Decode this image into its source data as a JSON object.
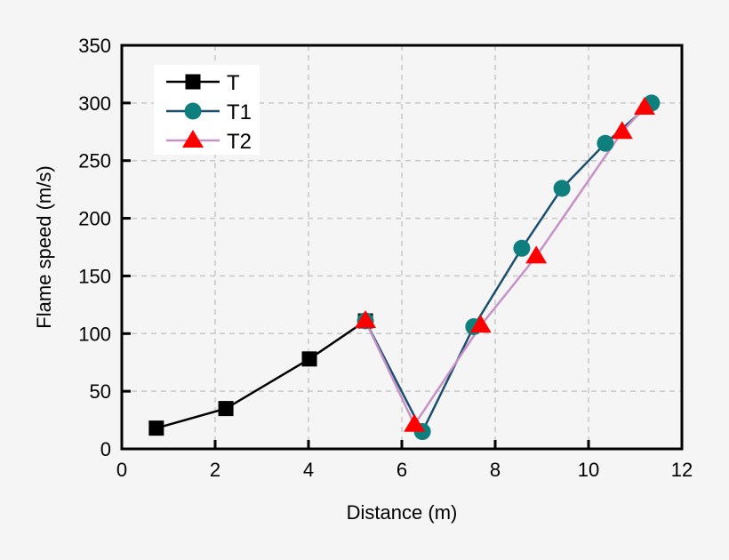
{
  "chart_data": {
    "type": "line",
    "title": "",
    "xlabel": "Distance (m)",
    "ylabel": "Flame speed (m/s)",
    "xlim": [
      0,
      12
    ],
    "ylim": [
      0,
      350
    ],
    "xticks": [
      0,
      2,
      4,
      6,
      8,
      10,
      12
    ],
    "yticks": [
      0,
      50,
      100,
      150,
      200,
      250,
      300,
      350
    ],
    "grid": true,
    "legend_position": "upper-left",
    "series": [
      {
        "name": "T",
        "marker": "square",
        "line_color": "#000000",
        "marker_color": "#000000",
        "points": [
          [
            0.74,
            18
          ],
          [
            2.23,
            35
          ],
          [
            4.02,
            78
          ],
          [
            5.22,
            111
          ]
        ]
      },
      {
        "name": "T1",
        "marker": "circle",
        "line_color": "#1c4f6e",
        "marker_color": "#0f7f7d",
        "points": [
          [
            5.22,
            111
          ],
          [
            6.44,
            15
          ],
          [
            7.54,
            106
          ],
          [
            8.57,
            174
          ],
          [
            9.43,
            226
          ],
          [
            10.36,
            265
          ],
          [
            11.35,
            300
          ]
        ]
      },
      {
        "name": "T2",
        "marker": "triangle",
        "line_color": "#c692c6",
        "marker_color": "#ff0000",
        "points": [
          [
            5.22,
            111
          ],
          [
            6.27,
            21
          ],
          [
            7.69,
            107
          ],
          [
            8.88,
            167
          ],
          [
            10.72,
            275
          ],
          [
            11.2,
            296
          ]
        ]
      }
    ]
  }
}
